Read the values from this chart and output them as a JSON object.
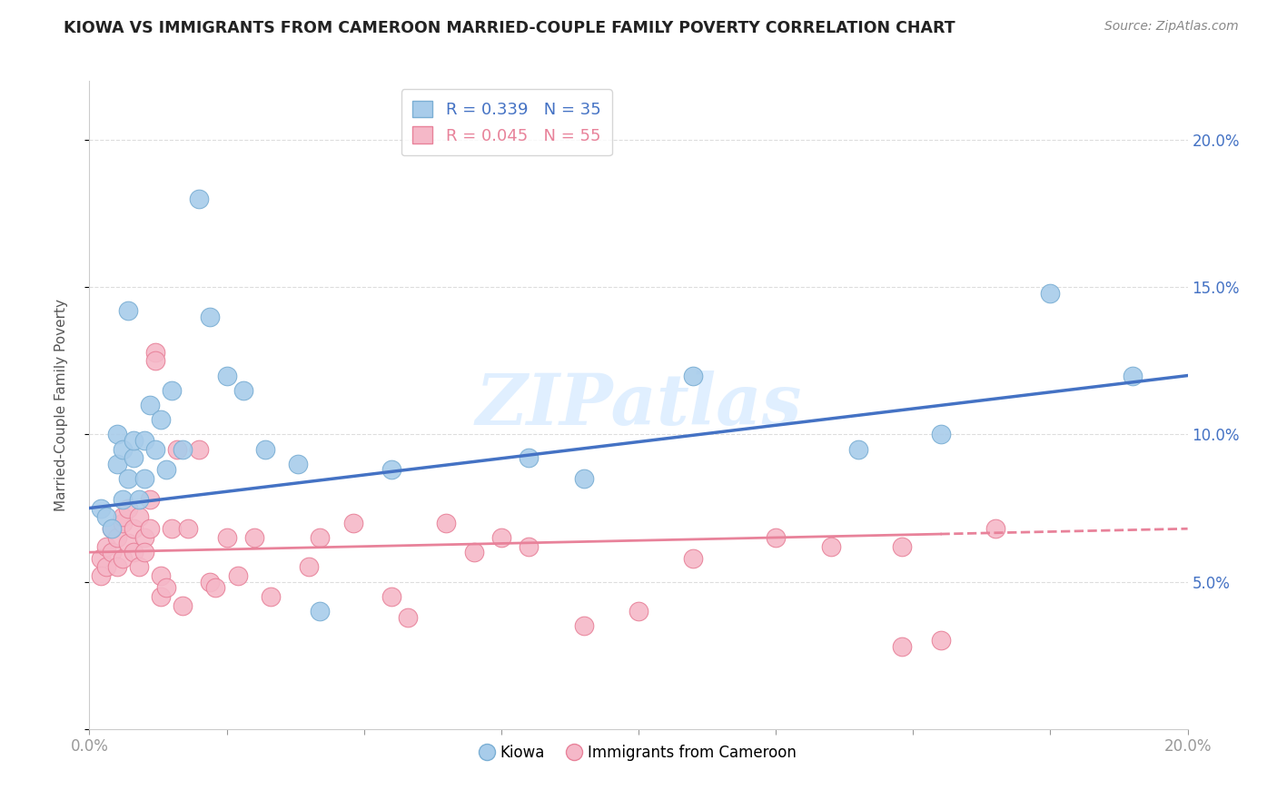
{
  "title": "KIOWA VS IMMIGRANTS FROM CAMEROON MARRIED-COUPLE FAMILY POVERTY CORRELATION CHART",
  "source": "Source: ZipAtlas.com",
  "ylabel": "Married-Couple Family Poverty",
  "xlim": [
    0,
    0.2
  ],
  "ylim": [
    0,
    0.22
  ],
  "kiowa_color": "#A8CCEA",
  "kiowa_edge_color": "#7BAFD4",
  "cameroon_color": "#F5B8C8",
  "cameroon_edge_color": "#E8829A",
  "kiowa_line_color": "#4472C4",
  "cameroon_line_color": "#E8829A",
  "kiowa_R": 0.339,
  "kiowa_N": 35,
  "cameroon_R": 0.045,
  "cameroon_N": 55,
  "legend_label_kiowa": "Kiowa",
  "legend_label_cameroon": "Immigrants from Cameroon",
  "watermark": "ZIPatlas",
  "grid_color": "#DDDDDD",
  "background_color": "#FFFFFF",
  "kiowa_line_x0": 0.0,
  "kiowa_line_y0": 0.075,
  "kiowa_line_x1": 0.2,
  "kiowa_line_y1": 0.12,
  "cameroon_line_x0": 0.0,
  "cameroon_line_y0": 0.06,
  "cameroon_line_x1": 0.2,
  "cameroon_line_y1": 0.068,
  "kiowa_x": [
    0.002,
    0.003,
    0.004,
    0.005,
    0.005,
    0.006,
    0.006,
    0.007,
    0.007,
    0.008,
    0.008,
    0.009,
    0.01,
    0.01,
    0.011,
    0.012,
    0.013,
    0.014,
    0.015,
    0.017,
    0.02,
    0.022,
    0.025,
    0.028,
    0.032,
    0.038,
    0.042,
    0.055,
    0.08,
    0.09,
    0.11,
    0.14,
    0.155,
    0.175,
    0.19
  ],
  "kiowa_y": [
    0.075,
    0.072,
    0.068,
    0.09,
    0.1,
    0.078,
    0.095,
    0.085,
    0.142,
    0.092,
    0.098,
    0.078,
    0.085,
    0.098,
    0.11,
    0.095,
    0.105,
    0.088,
    0.115,
    0.095,
    0.18,
    0.14,
    0.12,
    0.115,
    0.095,
    0.09,
    0.04,
    0.088,
    0.092,
    0.085,
    0.12,
    0.095,
    0.1,
    0.148,
    0.12
  ],
  "cameroon_x": [
    0.002,
    0.002,
    0.003,
    0.003,
    0.004,
    0.004,
    0.005,
    0.005,
    0.006,
    0.006,
    0.006,
    0.007,
    0.007,
    0.008,
    0.008,
    0.009,
    0.009,
    0.01,
    0.01,
    0.011,
    0.011,
    0.012,
    0.012,
    0.013,
    0.013,
    0.014,
    0.015,
    0.016,
    0.017,
    0.018,
    0.02,
    0.022,
    0.023,
    0.025,
    0.027,
    0.03,
    0.033,
    0.04,
    0.042,
    0.048,
    0.055,
    0.058,
    0.065,
    0.07,
    0.075,
    0.08,
    0.09,
    0.1,
    0.11,
    0.125,
    0.135,
    0.148,
    0.155,
    0.165,
    0.148
  ],
  "cameroon_y": [
    0.058,
    0.052,
    0.062,
    0.055,
    0.068,
    0.06,
    0.055,
    0.065,
    0.07,
    0.058,
    0.072,
    0.063,
    0.075,
    0.06,
    0.068,
    0.055,
    0.072,
    0.065,
    0.06,
    0.078,
    0.068,
    0.128,
    0.125,
    0.045,
    0.052,
    0.048,
    0.068,
    0.095,
    0.042,
    0.068,
    0.095,
    0.05,
    0.048,
    0.065,
    0.052,
    0.065,
    0.045,
    0.055,
    0.065,
    0.07,
    0.045,
    0.038,
    0.07,
    0.06,
    0.065,
    0.062,
    0.035,
    0.04,
    0.058,
    0.065,
    0.062,
    0.062,
    0.03,
    0.068,
    0.028
  ]
}
